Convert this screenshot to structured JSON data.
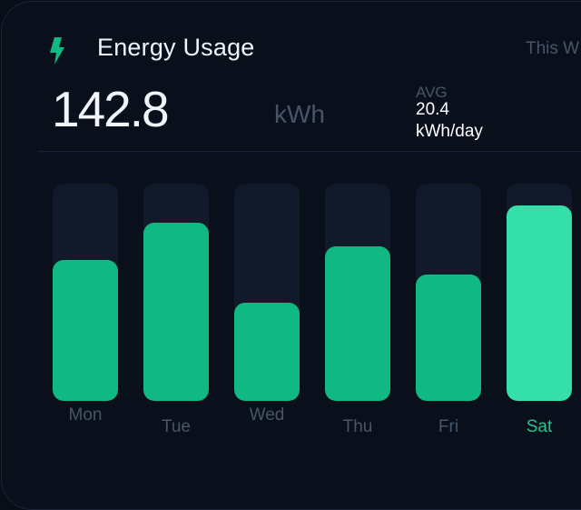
{
  "header": {
    "icon": "lightning-bolt-icon",
    "title": "Energy Usage",
    "range_label": "This W"
  },
  "summary": {
    "total": "142.8",
    "unit": "kWh",
    "avg_label": "AVG",
    "avg_value": "20.4",
    "avg_unit": "kWh/day"
  },
  "colors": {
    "accent": "#10b981",
    "highlight": "#34e0a8",
    "track": "#111a2a",
    "background": "#0a0f1c",
    "muted_text": "#475569"
  },
  "chart_data": {
    "type": "bar",
    "title": "Energy Usage",
    "categories": [
      "Mon",
      "Tue",
      "Wed",
      "Thu",
      "Fri",
      "Sat"
    ],
    "values": [
      65,
      82,
      45,
      71,
      58,
      90
    ],
    "value_unit": "% of track height (relative daily usage)",
    "highlighted": "Sat",
    "xlabel": "",
    "ylabel": "",
    "ylim": [
      0,
      100
    ],
    "grid": false,
    "legend": "none"
  },
  "bars": [
    {
      "label": "Mon",
      "pct": 65,
      "active": false,
      "wrap": true
    },
    {
      "label": "Tue",
      "pct": 82,
      "active": false,
      "wrap": false
    },
    {
      "label": "Wed",
      "pct": 45,
      "active": false,
      "wrap": true
    },
    {
      "label": "Thu",
      "pct": 71,
      "active": false,
      "wrap": false
    },
    {
      "label": "Fri",
      "pct": 58,
      "active": false,
      "wrap": false
    },
    {
      "label": "Sat",
      "pct": 90,
      "active": true,
      "wrap": false
    }
  ]
}
